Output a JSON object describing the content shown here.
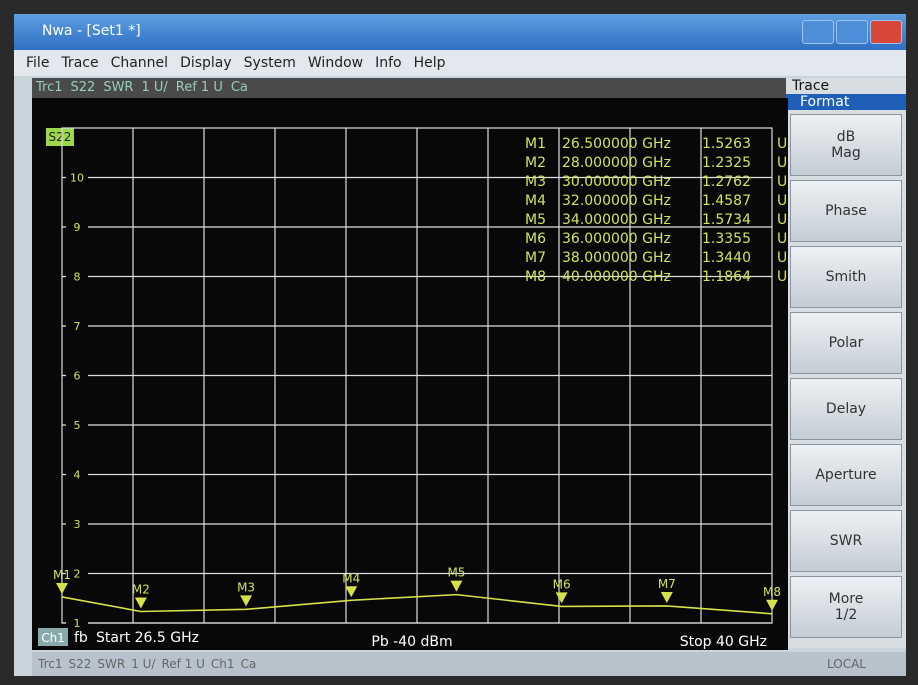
{
  "window": {
    "title": "Nwa - [Set1 *]",
    "menu": [
      "File",
      "Trace",
      "Channel",
      "Display",
      "System",
      "Window",
      "Info",
      "Help"
    ],
    "tabs": [
      "Trc1",
      "S22",
      "SWR",
      "1 U/",
      "Ref 1 U",
      "Ca"
    ]
  },
  "softkeys": {
    "header": "Trace",
    "menu": "Format",
    "buttons": [
      "dB\nMag",
      "Phase",
      "Smith",
      "Polar",
      "Delay",
      "Aperture",
      "SWR",
      "More\n1/2"
    ]
  },
  "status": {
    "items": [
      "Trc1",
      "S22",
      "SWR",
      "1 U/",
      "Ref 1 U",
      "Ch1",
      "Ca"
    ],
    "remote": "LOCAL"
  },
  "footer": {
    "channel": "Ch1",
    "mode": "fb",
    "start": "Start 26.5 GHz",
    "power": "Pb -40 dBm",
    "stop": "Stop 40 GHz"
  },
  "chart_data": {
    "type": "line",
    "trace_label": "S22",
    "x": [
      26.5,
      28,
      30,
      32,
      34,
      36,
      38,
      40
    ],
    "series": [
      {
        "name": "S22",
        "color": "#d6e04a",
        "values": [
          1.5263,
          1.2325,
          1.2762,
          1.4587,
          1.5734,
          1.3355,
          1.344,
          1.1864
        ],
        "value_labels": [
          "1.5263",
          "1.2325",
          "1.2762",
          "1.4587",
          "1.5734",
          "1.3355",
          "1.3440",
          "1.1864"
        ]
      }
    ],
    "markers": [
      "M1",
      "M2",
      "M3",
      "M4",
      "M5",
      "M6",
      "M7",
      "M8"
    ],
    "marker_stimulus": [
      "26.500000 GHz",
      "28.000000 GHz",
      "30.000000 GHz",
      "32.000000 GHz",
      "34.000000 GHz",
      "36.000000 GHz",
      "38.000000 GHz",
      "40.000000 GHz"
    ],
    "unit": "U",
    "xlim": [
      26.5,
      40
    ],
    "ylim": [
      1,
      11
    ],
    "yticks": [
      1,
      2,
      3,
      4,
      5,
      6,
      7,
      8,
      9,
      10
    ],
    "grid": true
  }
}
